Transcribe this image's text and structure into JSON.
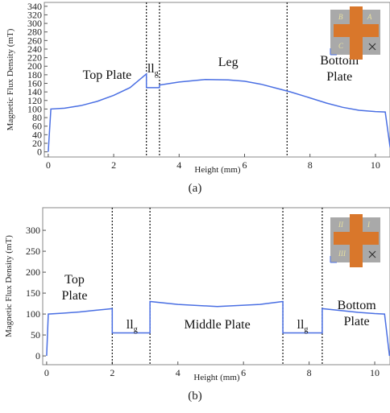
{
  "chart_data": [
    {
      "type": "line",
      "caption": "(a)",
      "x_label": "Height (mm)",
      "y_label": "Magnetic Flux Density (mT)",
      "xlim": [
        -0.12,
        10.47
      ],
      "xticks": [
        0,
        2,
        4,
        6,
        8,
        10
      ],
      "ylim": [
        -12,
        349
      ],
      "yticks": [
        0,
        20,
        40,
        60,
        80,
        100,
        120,
        140,
        160,
        180,
        200,
        220,
        240,
        260,
        280,
        300,
        320,
        340
      ],
      "color": "#4a6fe3",
      "x": [
        0,
        0.08,
        0.5,
        1,
        1.5,
        2,
        2.5,
        3.0,
        3.0,
        3.4,
        3.4,
        4,
        4.8,
        5.5,
        6,
        6.5,
        7,
        7.4,
        8,
        8.5,
        9,
        9.5,
        10,
        10.3,
        10.45
      ],
      "values": [
        0,
        100,
        102,
        108,
        118,
        132,
        150,
        182,
        150,
        150,
        156,
        163,
        169,
        168,
        165,
        158,
        148,
        140,
        126,
        114,
        104,
        97,
        94,
        93,
        10
      ],
      "vlines": [
        3.0,
        3.4,
        7.3
      ],
      "annotations": [
        {
          "lines": [
            "Top Plate"
          ]
        },
        {
          "lines": [
            "l"
          ],
          "sub": "g"
        },
        {
          "lines": [
            "Leg"
          ]
        },
        {
          "lines": [
            "Bottom",
            "Plate"
          ]
        }
      ],
      "inset_labels": [
        "B",
        "A",
        "C"
      ]
    },
    {
      "type": "line",
      "caption": "(b)",
      "x_label": "Height (mm)",
      "y_label": "Magnetic Flux Density (mT)",
      "xlim": [
        -0.12,
        10.49
      ],
      "xticks": [
        0,
        2,
        4,
        6,
        8,
        10
      ],
      "ylim": [
        -21,
        354
      ],
      "yticks": [
        0,
        50,
        100,
        150,
        200,
        250,
        300
      ],
      "color": "#4a6fe3",
      "x": [
        0,
        0.05,
        0.5,
        1,
        1.5,
        2,
        2,
        3.15,
        3.15,
        4,
        5.2,
        6.5,
        7.2,
        7.2,
        8.4,
        8.4,
        9,
        9.5,
        10,
        10.3,
        10.45
      ],
      "values": [
        0,
        100,
        102,
        105,
        109,
        113,
        55,
        55,
        130,
        123,
        118,
        123,
        130,
        55,
        55,
        113,
        108,
        104,
        101,
        100,
        0
      ],
      "vlines": [
        2.0,
        3.15,
        7.2,
        8.4
      ],
      "annotations": [
        {
          "lines": [
            "Top",
            "Plate"
          ]
        },
        {
          "lines": [
            "l"
          ],
          "sub": "g"
        },
        {
          "lines": [
            "Middle Plate"
          ]
        },
        {
          "lines": [
            "l"
          ],
          "sub": "g"
        },
        {
          "lines": [
            "Bottom",
            "Plate"
          ]
        }
      ],
      "inset_labels": [
        "II",
        "I",
        "III"
      ]
    }
  ]
}
